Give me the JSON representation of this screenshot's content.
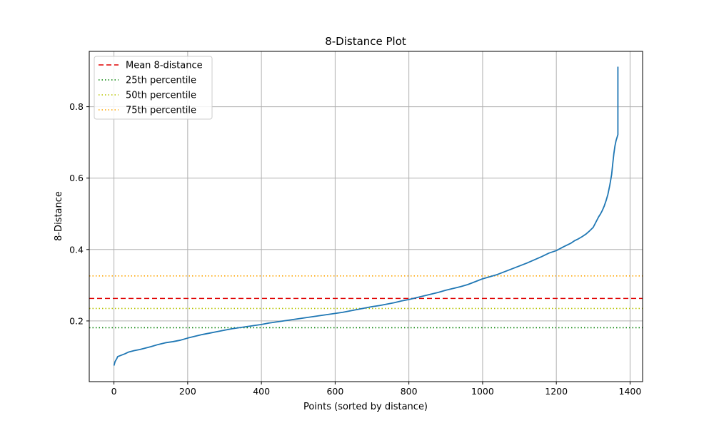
{
  "chart_data": {
    "type": "line",
    "title": "8-Distance Plot",
    "xlabel": "Points (sorted by distance)",
    "ylabel": "8-Distance",
    "xlim": [
      -67,
      1434
    ],
    "ylim": [
      0.03,
      0.955
    ],
    "xticks": [
      0,
      200,
      400,
      600,
      800,
      1000,
      1200,
      1400
    ],
    "yticks": [
      0.2,
      0.4,
      0.6,
      0.8
    ],
    "grid": true,
    "legend_position": "upper-left",
    "series": [
      {
        "color": "#1f77b4",
        "points": [
          [
            0,
            0.075
          ],
          [
            3,
            0.086
          ],
          [
            8,
            0.095
          ],
          [
            10,
            0.1
          ],
          [
            20,
            0.104
          ],
          [
            30,
            0.108
          ],
          [
            40,
            0.113
          ],
          [
            55,
            0.117
          ],
          [
            70,
            0.12
          ],
          [
            85,
            0.124
          ],
          [
            100,
            0.128
          ],
          [
            120,
            0.134
          ],
          [
            140,
            0.139
          ],
          [
            160,
            0.142
          ],
          [
            180,
            0.146
          ],
          [
            200,
            0.152
          ],
          [
            220,
            0.157
          ],
          [
            240,
            0.162
          ],
          [
            260,
            0.166
          ],
          [
            280,
            0.17
          ],
          [
            300,
            0.174
          ],
          [
            320,
            0.178
          ],
          [
            340,
            0.181
          ],
          [
            360,
            0.184
          ],
          [
            380,
            0.187
          ],
          [
            400,
            0.19
          ],
          [
            420,
            0.194
          ],
          [
            440,
            0.197
          ],
          [
            460,
            0.2
          ],
          [
            480,
            0.203
          ],
          [
            500,
            0.206
          ],
          [
            520,
            0.209
          ],
          [
            540,
            0.212
          ],
          [
            560,
            0.215
          ],
          [
            580,
            0.218
          ],
          [
            600,
            0.221
          ],
          [
            620,
            0.224
          ],
          [
            640,
            0.228
          ],
          [
            660,
            0.232
          ],
          [
            680,
            0.236
          ],
          [
            700,
            0.24
          ],
          [
            720,
            0.243
          ],
          [
            740,
            0.247
          ],
          [
            760,
            0.251
          ],
          [
            780,
            0.256
          ],
          [
            800,
            0.26
          ],
          [
            820,
            0.265
          ],
          [
            840,
            0.27
          ],
          [
            860,
            0.275
          ],
          [
            880,
            0.28
          ],
          [
            900,
            0.286
          ],
          [
            920,
            0.291
          ],
          [
            940,
            0.296
          ],
          [
            960,
            0.302
          ],
          [
            980,
            0.31
          ],
          [
            1000,
            0.318
          ],
          [
            1020,
            0.324
          ],
          [
            1040,
            0.33
          ],
          [
            1060,
            0.338
          ],
          [
            1080,
            0.346
          ],
          [
            1100,
            0.354
          ],
          [
            1120,
            0.362
          ],
          [
            1140,
            0.371
          ],
          [
            1160,
            0.38
          ],
          [
            1180,
            0.39
          ],
          [
            1200,
            0.397
          ],
          [
            1220,
            0.408
          ],
          [
            1240,
            0.418
          ],
          [
            1250,
            0.425
          ],
          [
            1260,
            0.43
          ],
          [
            1270,
            0.436
          ],
          [
            1280,
            0.443
          ],
          [
            1290,
            0.452
          ],
          [
            1300,
            0.462
          ],
          [
            1305,
            0.472
          ],
          [
            1310,
            0.482
          ],
          [
            1315,
            0.492
          ],
          [
            1320,
            0.5
          ],
          [
            1325,
            0.51
          ],
          [
            1330,
            0.522
          ],
          [
            1335,
            0.537
          ],
          [
            1340,
            0.555
          ],
          [
            1345,
            0.58
          ],
          [
            1350,
            0.61
          ],
          [
            1353,
            0.64
          ],
          [
            1356,
            0.668
          ],
          [
            1359,
            0.69
          ],
          [
            1362,
            0.705
          ],
          [
            1365,
            0.715
          ],
          [
            1367,
            0.722
          ],
          [
            1367,
            0.912
          ]
        ]
      }
    ],
    "reference_lines": [
      {
        "label": "Mean 8-distance",
        "y": 0.263,
        "color": "#e00000",
        "style": "dashed"
      },
      {
        "label": "25th percentile",
        "y": 0.181,
        "color": "#008000",
        "style": "dotted"
      },
      {
        "label": "50th percentile",
        "y": 0.235,
        "color": "#b7c400",
        "style": "dotted"
      },
      {
        "label": "75th percentile",
        "y": 0.326,
        "color": "#ffa500",
        "style": "dotted"
      }
    ]
  }
}
